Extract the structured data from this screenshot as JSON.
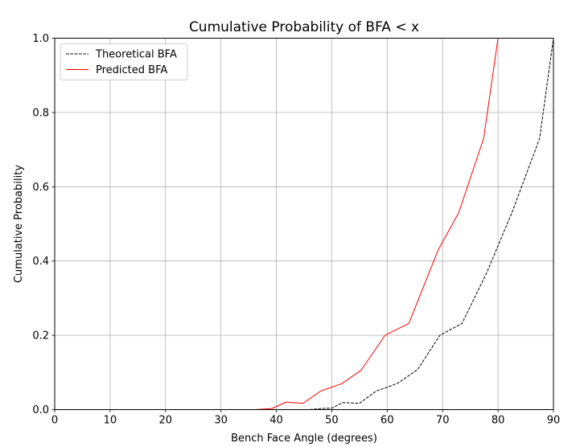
{
  "chart_data": {
    "type": "line",
    "title": "Cumulative Probability of BFA < x",
    "xlabel": "Bench Face Angle (degrees)",
    "ylabel": "Cumulative Probability",
    "xlim": [
      0,
      90
    ],
    "ylim": [
      0,
      1.0
    ],
    "xticks": [
      0,
      10,
      20,
      30,
      40,
      50,
      60,
      70,
      80,
      90
    ],
    "yticks": [
      0.0,
      0.2,
      0.4,
      0.6,
      0.8,
      1.0
    ],
    "xtick_labels": [
      "0",
      "10",
      "20",
      "30",
      "40",
      "50",
      "60",
      "70",
      "80",
      "90"
    ],
    "ytick_labels": [
      "0.0",
      "0.2",
      "0.4",
      "0.6",
      "0.8",
      "1.0"
    ],
    "grid": true,
    "legend_position": "top-left",
    "series": [
      {
        "name": "Theoretical BFA",
        "color": "#000000",
        "style": "dashed",
        "x": [
          46,
          48,
          50,
          52,
          55,
          58,
          60,
          62,
          65.5,
          69.5,
          73.5,
          78,
          82.5,
          87.5,
          90
        ],
        "y": [
          0.0,
          0.003,
          0.004,
          0.019,
          0.017,
          0.05,
          0.06,
          0.072,
          0.108,
          0.2,
          0.232,
          0.37,
          0.53,
          0.73,
          1.0
        ]
      },
      {
        "name": "Predicted BFA",
        "color": "#ff0000",
        "style": "solid",
        "x": [
          36.2,
          39.2,
          41.7,
          44.8,
          48.0,
          51.8,
          55.3,
          59.6,
          63.9,
          69.2,
          72.9,
          77.4,
          80
        ],
        "y": [
          0.0,
          0.003,
          0.02,
          0.017,
          0.05,
          0.07,
          0.106,
          0.2,
          0.232,
          0.43,
          0.53,
          0.73,
          1.0
        ]
      }
    ]
  }
}
